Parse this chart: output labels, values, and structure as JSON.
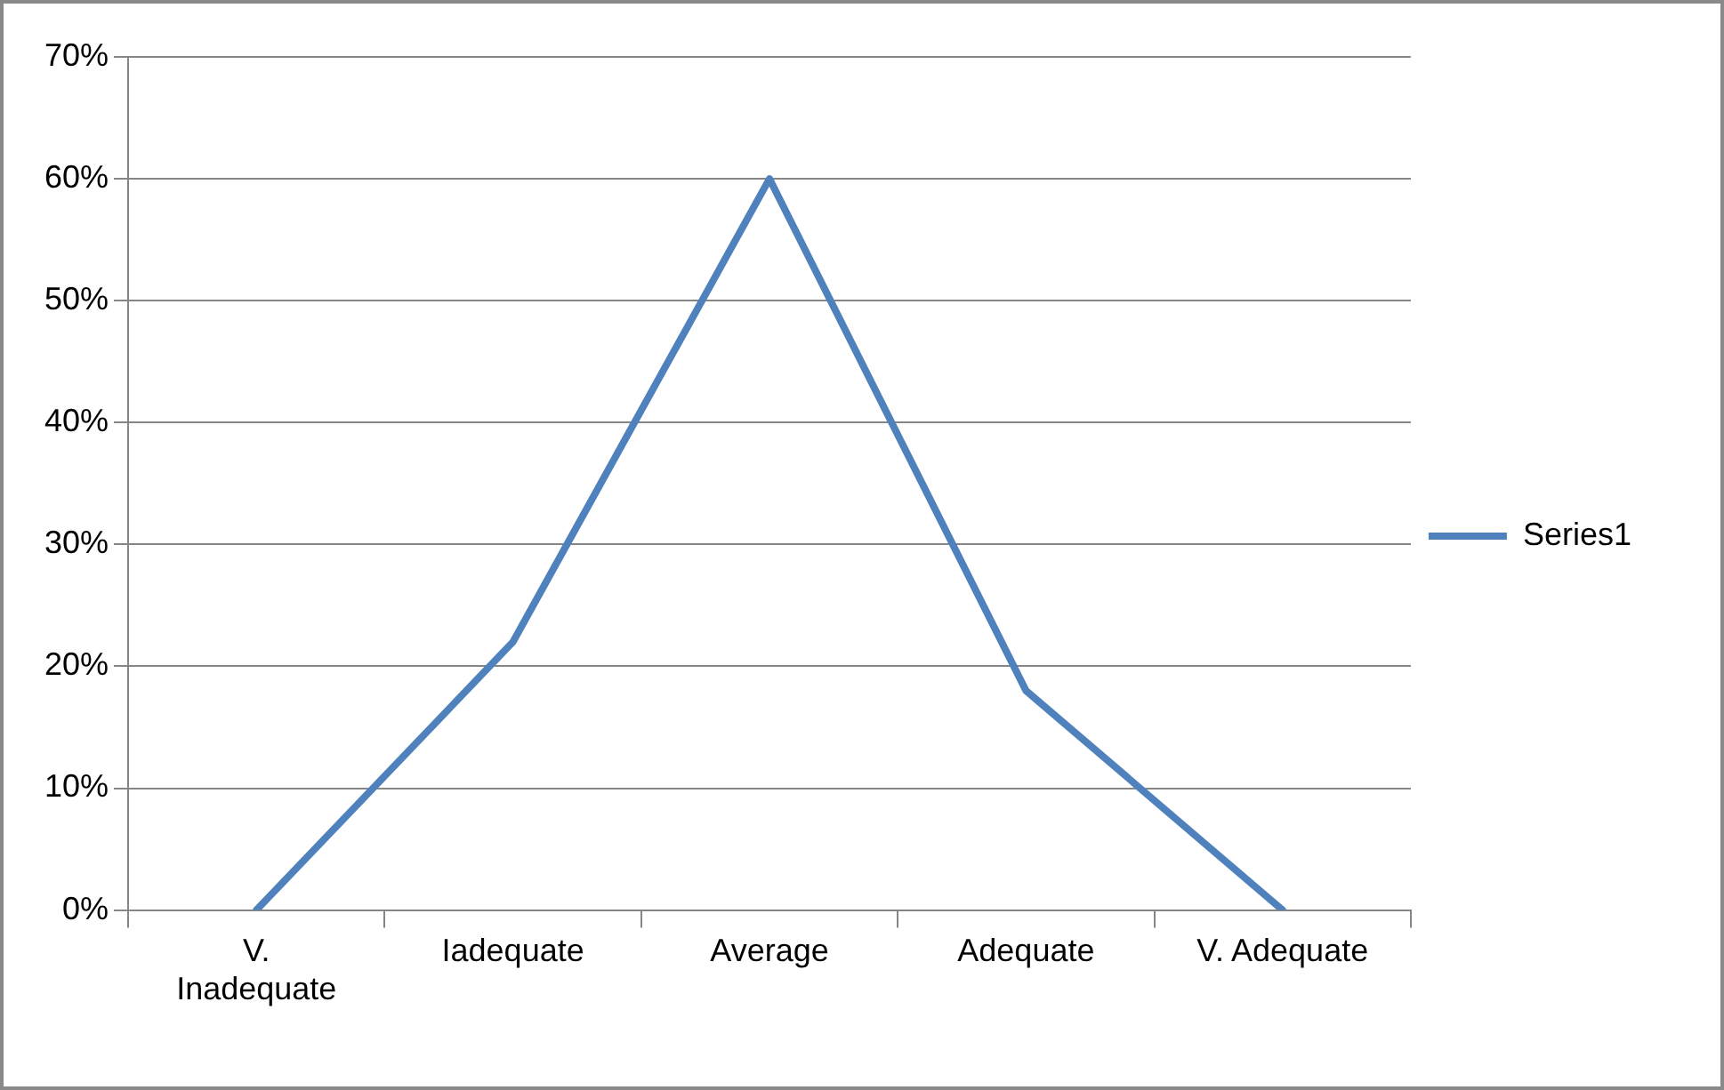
{
  "chart_data": {
    "type": "line",
    "categories": [
      "V. Inadequate",
      "Iadequate",
      "Average",
      "Adequate",
      "V. Adequate"
    ],
    "series": [
      {
        "name": "Series1",
        "color": "#4f81bd",
        "values": [
          0,
          22,
          60,
          18,
          0
        ]
      }
    ],
    "ylim": [
      0,
      70
    ],
    "yticks": [
      {
        "value": 0,
        "label": "0%"
      },
      {
        "value": 10,
        "label": "10%"
      },
      {
        "value": 20,
        "label": "20%"
      },
      {
        "value": 30,
        "label": "30%"
      },
      {
        "value": 40,
        "label": "40%"
      },
      {
        "value": 50,
        "label": "50%"
      },
      {
        "value": 60,
        "label": "60%"
      },
      {
        "value": 70,
        "label": "70%"
      }
    ],
    "grid": "y",
    "legend": "right",
    "marker": "none",
    "line_style": "solid"
  }
}
